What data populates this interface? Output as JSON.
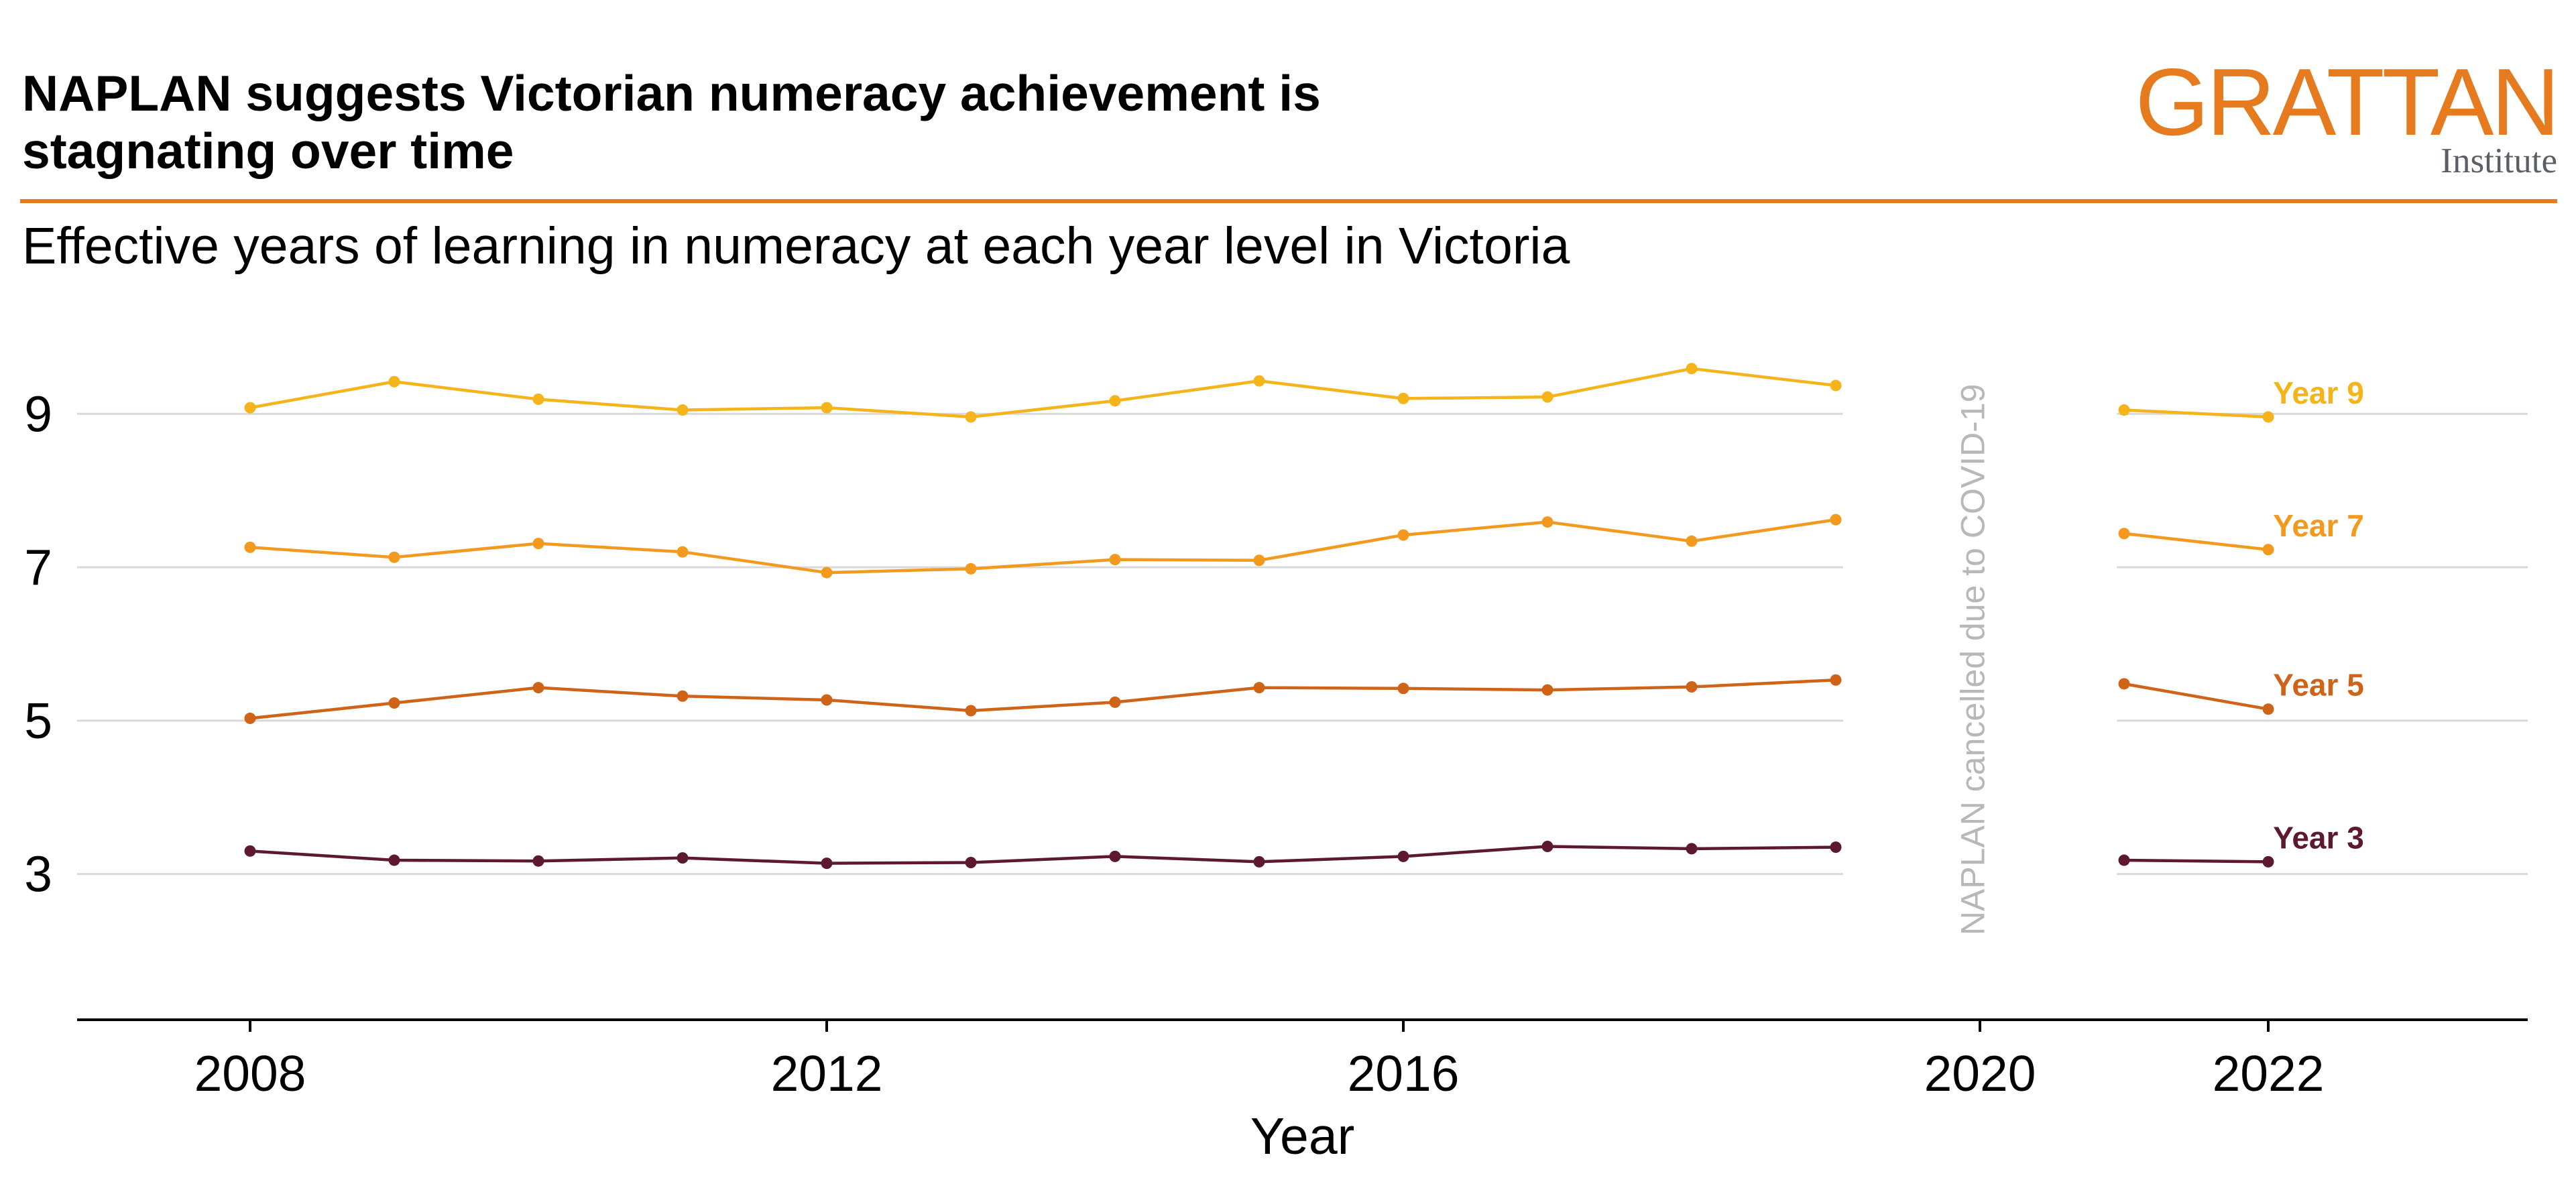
{
  "header": {
    "title": "NAPLAN suggests Victorian numeracy achievement is stagnating over time",
    "subtitle": "Effective years of learning in numeracy at each year level in Victoria",
    "logo_main": "GRATTAN",
    "logo_sub": "Institute"
  },
  "colors": {
    "brand": "#e57b1e",
    "year9": "#f4b41a",
    "year7": "#f39a1e",
    "year5": "#cf6318",
    "year3": "#5d1a2f",
    "grid": "#d9d9d9",
    "annotation": "#b8b8b8"
  },
  "chart_data": {
    "type": "line",
    "xlabel": "Year",
    "ylabel": "",
    "xlim": [
      2006.8,
      2023.8
    ],
    "ylim": [
      1.1,
      10.2
    ],
    "x_ticks": [
      2008,
      2012,
      2016,
      2020,
      2022
    ],
    "y_ticks": [
      3,
      5,
      7,
      9
    ],
    "grid": "horizontal",
    "annotation": "NAPLAN cancelled due to COVID-19",
    "series": [
      {
        "name": "Year 9",
        "segments": [
          {
            "x": [
              2008,
              2009,
              2010,
              2011,
              2012,
              2013,
              2014,
              2015,
              2016,
              2017,
              2018,
              2019
            ],
            "y": [
              9.08,
              9.42,
              9.19,
              9.05,
              9.08,
              8.96,
              9.17,
              9.43,
              9.2,
              9.22,
              9.59,
              9.37
            ]
          },
          {
            "x": [
              2021,
              2022
            ],
            "y": [
              9.05,
              8.96
            ]
          }
        ]
      },
      {
        "name": "Year 7",
        "segments": [
          {
            "x": [
              2008,
              2009,
              2010,
              2011,
              2012,
              2013,
              2014,
              2015,
              2016,
              2017,
              2018,
              2019
            ],
            "y": [
              7.26,
              7.13,
              7.31,
              7.2,
              6.93,
              6.98,
              7.1,
              7.09,
              7.42,
              7.59,
              7.34,
              7.62
            ]
          },
          {
            "x": [
              2021,
              2022
            ],
            "y": [
              7.44,
              7.23
            ]
          }
        ]
      },
      {
        "name": "Year 5",
        "segments": [
          {
            "x": [
              2008,
              2009,
              2010,
              2011,
              2012,
              2013,
              2014,
              2015,
              2016,
              2017,
              2018,
              2019
            ],
            "y": [
              5.03,
              5.23,
              5.43,
              5.32,
              5.27,
              5.13,
              5.24,
              5.43,
              5.42,
              5.4,
              5.44,
              5.53
            ]
          },
          {
            "x": [
              2021,
              2022
            ],
            "y": [
              5.48,
              5.15
            ]
          }
        ]
      },
      {
        "name": "Year 3",
        "segments": [
          {
            "x": [
              2008,
              2009,
              2010,
              2011,
              2012,
              2013,
              2014,
              2015,
              2016,
              2017,
              2018,
              2019
            ],
            "y": [
              3.3,
              3.18,
              3.17,
              3.21,
              3.14,
              3.15,
              3.23,
              3.16,
              3.23,
              3.36,
              3.33,
              3.35
            ]
          },
          {
            "x": [
              2021,
              2022
            ],
            "y": [
              3.18,
              3.16
            ]
          }
        ]
      }
    ]
  }
}
